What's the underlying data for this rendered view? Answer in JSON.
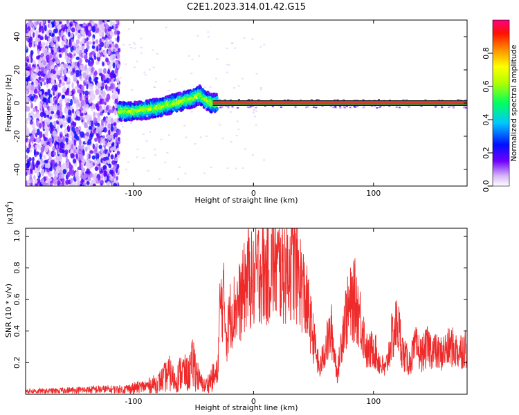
{
  "chart_data": [
    {
      "type": "heatmap",
      "title": "C2E1.2023.314.01.42.G15",
      "xlabel": "Height of straight line (km)",
      "ylabel": "Frequency (Hz)",
      "xlim": [
        -190,
        178
      ],
      "ylim": [
        -50,
        50
      ],
      "xticks": [
        -100,
        0,
        100
      ],
      "yticks": [
        -40,
        -20,
        0,
        20,
        40
      ],
      "colorbar": {
        "label": "Normalized spectral amplitude",
        "range": [
          0.0,
          1.0
        ],
        "ticks": [
          0.0,
          0.2,
          0.4,
          0.6,
          0.8
        ],
        "colors": [
          "#f2e6fa",
          "#6a00ff",
          "#0000ff",
          "#00d0ff",
          "#00ff40",
          "#c8ff00",
          "#ffff00",
          "#ff8000",
          "#ff0000",
          "#ff0080"
        ]
      },
      "regions": [
        {
          "x": [
            -190,
            -112
          ],
          "freq": [
            -50,
            50
          ],
          "amplitude": 0.1,
          "description": "broadband noise"
        },
        {
          "x": [
            -112,
            -30
          ],
          "freq": [
            -7,
            10
          ],
          "amplitude": 0.5,
          "description": "rising signal trace"
        },
        {
          "x": [
            -30,
            178
          ],
          "freq": [
            -1,
            1
          ],
          "amplitude": 0.9,
          "description": "stable carrier line"
        }
      ],
      "signal_trace": {
        "x": [
          -112,
          -100,
          -90,
          -80,
          -70,
          -60,
          -50,
          -45,
          -40,
          -35,
          -30,
          -20,
          0,
          50,
          100,
          178
        ],
        "freq": [
          -5,
          -5,
          -4,
          -3,
          -1,
          1,
          3,
          5,
          2,
          0,
          0,
          0,
          0,
          0,
          0,
          0
        ]
      }
    },
    {
      "type": "line",
      "title": "",
      "xlabel": "Height of straight line (km)",
      "ylabel": "SNR (10 * v/v)",
      "y_multiplier": "(x10",
      "y_multiplier_exp": "4",
      "y_multiplier_close": ")",
      "xlim": [
        -190,
        178
      ],
      "ylim": [
        0,
        1.05
      ],
      "xticks": [
        -100,
        0,
        100
      ],
      "yticks": [
        0.2,
        0.4,
        0.6,
        0.8,
        1.0
      ],
      "series": [
        {
          "color": "#ee2a2a",
          "x": [
            -190,
            -170,
            -150,
            -130,
            -110,
            -100,
            -90,
            -80,
            -75,
            -70,
            -65,
            -60,
            -55,
            -50,
            -45,
            -40,
            -35,
            -30,
            -28,
            -25,
            -22,
            -20,
            -15,
            -10,
            -5,
            0,
            5,
            10,
            15,
            20,
            25,
            30,
            35,
            40,
            45,
            50,
            55,
            60,
            65,
            70,
            75,
            80,
            85,
            90,
            95,
            100,
            105,
            110,
            115,
            120,
            125,
            130,
            135,
            140,
            145,
            150,
            155,
            160,
            165,
            170,
            178
          ],
          "y": [
            0.02,
            0.02,
            0.025,
            0.03,
            0.03,
            0.04,
            0.05,
            0.07,
            0.1,
            0.13,
            0.08,
            0.15,
            0.12,
            0.2,
            0.08,
            0.05,
            0.1,
            0.12,
            0.55,
            0.6,
            0.35,
            0.5,
            0.55,
            0.6,
            0.75,
            0.7,
            0.8,
            0.75,
            0.82,
            0.8,
            0.78,
            0.82,
            0.8,
            0.7,
            0.55,
            0.35,
            0.15,
            0.3,
            0.4,
            0.12,
            0.45,
            0.55,
            0.6,
            0.45,
            0.25,
            0.3,
            0.2,
            0.15,
            0.35,
            0.45,
            0.25,
            0.2,
            0.3,
            0.25,
            0.3,
            0.28,
            0.25,
            0.28,
            0.3,
            0.27,
            0.3
          ]
        }
      ]
    }
  ]
}
